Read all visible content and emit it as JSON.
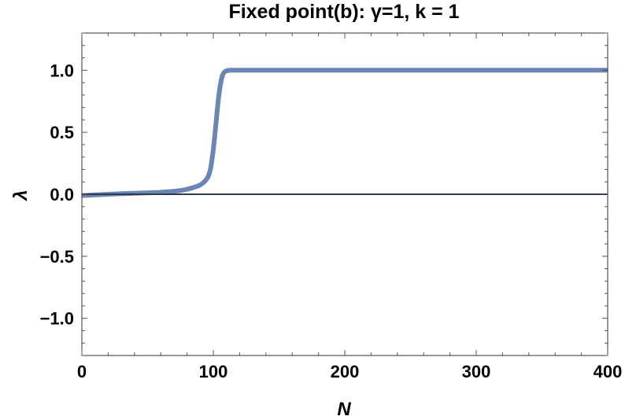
{
  "chart_data": {
    "type": "line",
    "title": "Fixed point(b): γ=1, k = 1",
    "xlabel": "N",
    "ylabel": "λ",
    "xlim": [
      0,
      400
    ],
    "ylim": [
      -1.3,
      1.3
    ],
    "x_ticks": [
      0,
      100,
      200,
      300,
      400
    ],
    "x_tick_labels": [
      "0",
      "100",
      "200",
      "300",
      "400"
    ],
    "y_ticks": [
      -1.0,
      -0.5,
      0.0,
      0.5,
      1.0
    ],
    "y_tick_labels": [
      "−1.0",
      "−0.5",
      "0.0",
      "0.5",
      "1.0"
    ],
    "grid": false,
    "colors": {
      "series": "#6b86b5",
      "zero_line": "#2f3b47",
      "frame": "#333333"
    },
    "series": [
      {
        "x": [
          0,
          10,
          20,
          30,
          40,
          50,
          60,
          70,
          75,
          80,
          85,
          88,
          90,
          92,
          94,
          96,
          97,
          98,
          99,
          100,
          101,
          102,
          103,
          104,
          105,
          106,
          107,
          108,
          109,
          110,
          112,
          115,
          120,
          150,
          200,
          250,
          300,
          350,
          400
        ],
        "y": [
          -0.01,
          -0.005,
          0.0,
          0.005,
          0.008,
          0.012,
          0.016,
          0.024,
          0.03,
          0.04,
          0.055,
          0.065,
          0.075,
          0.09,
          0.11,
          0.14,
          0.17,
          0.21,
          0.28,
          0.36,
          0.46,
          0.57,
          0.68,
          0.78,
          0.86,
          0.92,
          0.96,
          0.98,
          0.99,
          0.995,
          1.0,
          1.0,
          1.0,
          1.0,
          1.0,
          1.0,
          1.0,
          1.0,
          1.0
        ]
      },
      {
        "x": [
          0,
          400
        ],
        "y": [
          0,
          0
        ]
      }
    ]
  }
}
